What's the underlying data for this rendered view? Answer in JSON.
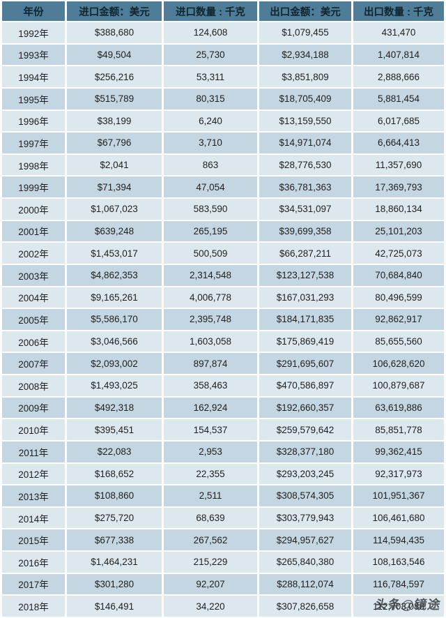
{
  "chart_data": {
    "type": "table",
    "columns": [
      "年份",
      "进口金额：美元",
      "进口数量 : 千克",
      "出口金额：美元",
      "出口数量 : 千克"
    ],
    "rows": [
      [
        "1992年",
        "$388,680",
        "124,608",
        "$1,079,455",
        "431,470"
      ],
      [
        "1993年",
        "$49,504",
        "25,730",
        "$2,934,188",
        "1,407,814"
      ],
      [
        "1994年",
        "$256,216",
        "53,311",
        "$3,851,809",
        "2,888,666"
      ],
      [
        "1995年",
        "$515,789",
        "80,315",
        "$18,705,409",
        "5,881,454"
      ],
      [
        "1996年",
        "$38,199",
        "6,240",
        "$13,159,550",
        "6,017,685"
      ],
      [
        "1997年",
        "$67,796",
        "3,710",
        "$14,971,074",
        "6,664,413"
      ],
      [
        "1998年",
        "$2,041",
        "863",
        "$28,776,530",
        "11,357,690"
      ],
      [
        "1999年",
        "$71,394",
        "47,054",
        "$36,781,363",
        "17,369,793"
      ],
      [
        "2000年",
        "$1,067,023",
        "583,590",
        "$34,531,097",
        "18,860,134"
      ],
      [
        "2001年",
        "$639,248",
        "265,195",
        "$39,699,358",
        "25,101,203"
      ],
      [
        "2002年",
        "$1,453,017",
        "500,509",
        "$66,287,211",
        "42,725,073"
      ],
      [
        "2003年",
        "$4,862,353",
        "2,314,548",
        "$123,127,538",
        "70,684,840"
      ],
      [
        "2004年",
        "$9,165,261",
        "4,006,778",
        "$167,031,293",
        "80,496,599"
      ],
      [
        "2005年",
        "$5,586,170",
        "2,395,748",
        "$184,171,835",
        "92,862,917"
      ],
      [
        "2006年",
        "$3,046,566",
        "1,603,058",
        "$175,869,419",
        "85,655,560"
      ],
      [
        "2007年",
        "$2,093,002",
        "897,874",
        "$291,695,607",
        "106,628,620"
      ],
      [
        "2008年",
        "$1,493,025",
        "358,463",
        "$470,586,897",
        "100,879,687"
      ],
      [
        "2009年",
        "$492,318",
        "162,924",
        "$192,660,357",
        "63,619,886"
      ],
      [
        "2010年",
        "$395,451",
        "154,537",
        "$259,579,642",
        "85,851,778"
      ],
      [
        "2011年",
        "$22,083",
        "2,953",
        "$328,377,180",
        "99,362,415"
      ],
      [
        "2012年",
        "$168,652",
        "22,355",
        "$293,203,245",
        "92,317,973"
      ],
      [
        "2013年",
        "$108,860",
        "2,511",
        "$308,574,305",
        "101,951,367"
      ],
      [
        "2014年",
        "$275,720",
        "68,639",
        "$303,779,943",
        "106,461,680"
      ],
      [
        "2015年",
        "$677,338",
        "267,562",
        "$294,957,627",
        "114,594,435"
      ],
      [
        "2016年",
        "$1,464,231",
        "215,229",
        "$265,840,380",
        "108,163,546"
      ],
      [
        "2017年",
        "$301,280",
        "92,207",
        "$288,112,074",
        "116,784,597"
      ],
      [
        "2018年",
        "$146,491",
        "34,220",
        "$307,826,658",
        "112,703,088"
      ]
    ],
    "title": "",
    "layout_hints": {
      "header_position": "top",
      "alternating_rows": true,
      "first_data_row_shade": "light"
    }
  },
  "watermark": {
    "text": "头条@镜途"
  },
  "colors": {
    "header_bg": "#4f7d97",
    "header_text": "#0d2530",
    "row_light": "#dce8ee",
    "row_dark": "#c4d6e1",
    "separator": "#ffffff",
    "cell_text": "#1f1f1f",
    "watermark_text": "#3c4043"
  }
}
